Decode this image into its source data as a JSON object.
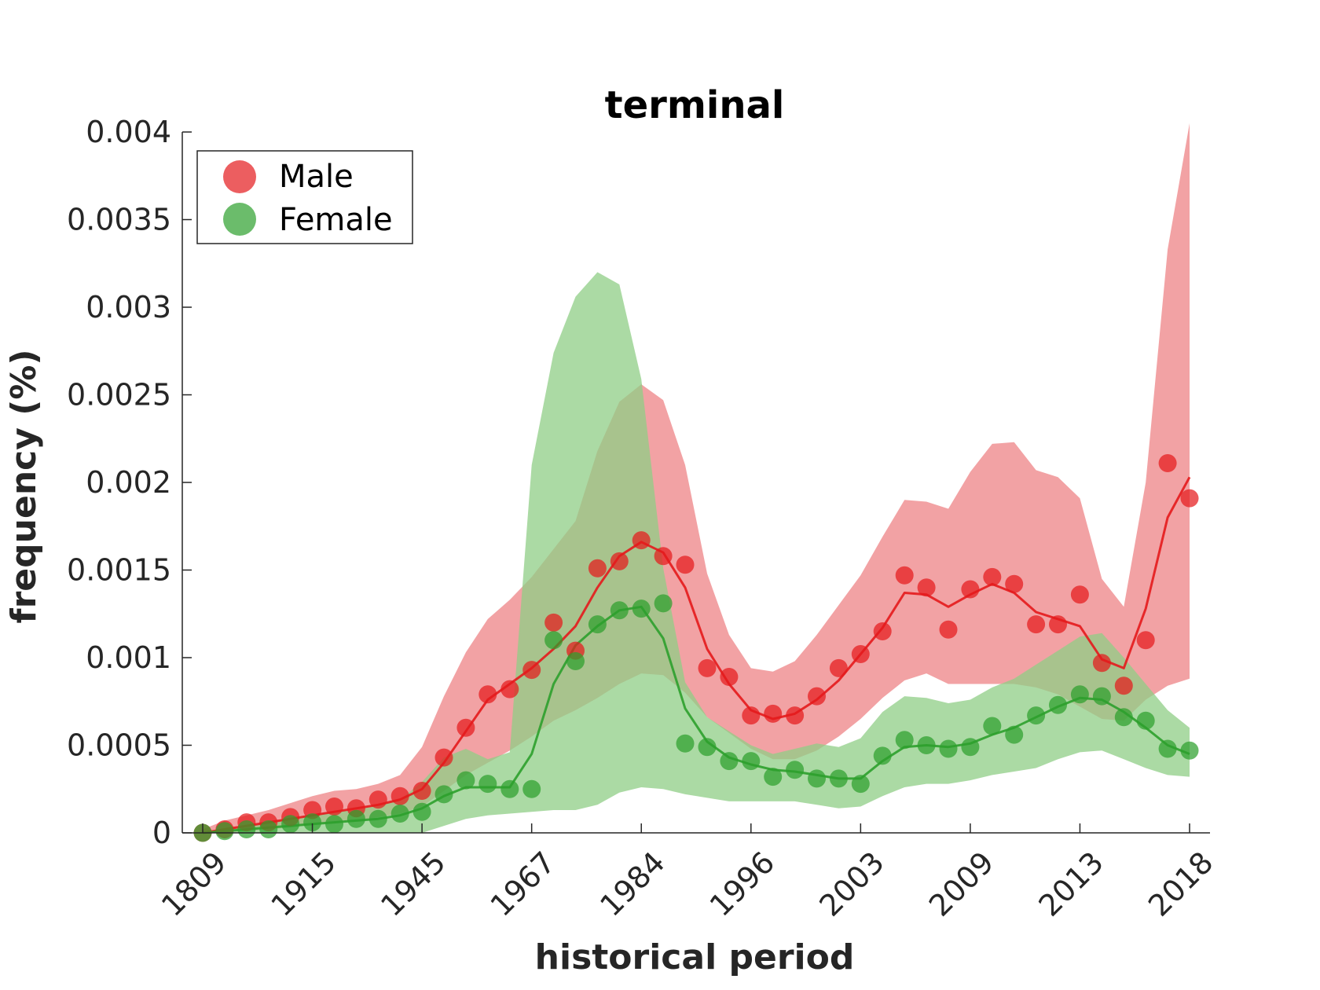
{
  "colors": {
    "male": "#e41a1c",
    "female": "#2ca02c",
    "male_band": "#ee8385",
    "female_band": "#8fce86",
    "axis": "#262626"
  },
  "chart_data": {
    "type": "scatter",
    "title": "terminal",
    "xlabel": "historical period",
    "ylabel": "frequency (%)",
    "x_tick_labels": [
      "1809",
      "1915",
      "1945",
      "1967",
      "1984",
      "1996",
      "2003",
      "2009",
      "2013",
      "2018"
    ],
    "y_tick_labels": [
      "0",
      "0.0005",
      "0.001",
      "0.0015",
      "0.002",
      "0.0025",
      "0.003",
      "0.0035",
      "0.004"
    ],
    "ylim": [
      0,
      0.004
    ],
    "legend": {
      "position": "top-left",
      "entries": [
        "Male",
        "Female"
      ]
    },
    "series": [
      {
        "name": "Male",
        "color_key": "male",
        "points": [
          0.0,
          2e-05,
          6e-05,
          6e-05,
          9e-05,
          0.00013,
          0.00015,
          0.00014,
          0.00019,
          0.00021,
          0.00024,
          0.00043,
          0.0006,
          0.00079,
          0.00082,
          0.00093,
          0.0012,
          0.00104,
          0.00151,
          0.00155,
          0.00167,
          0.00158,
          0.00153,
          0.00094,
          0.00089,
          0.00067,
          0.00068,
          0.00067,
          0.00078,
          0.00094,
          0.00102,
          0.00115,
          0.00147,
          0.0014,
          0.00116,
          0.00139,
          0.00146,
          0.00142,
          0.00119,
          0.00119,
          0.00136,
          0.00097,
          0.00084,
          0.0011,
          0.00211,
          0.00191
        ],
        "trend": [
          0.0,
          2e-05,
          4e-05,
          6e-05,
          8e-05,
          0.0001,
          0.00012,
          0.00014,
          0.00016,
          0.00019,
          0.00025,
          0.0004,
          0.00058,
          0.00076,
          0.00085,
          0.00094,
          0.00105,
          0.00118,
          0.0014,
          0.00158,
          0.00166,
          0.0016,
          0.0014,
          0.00105,
          0.00085,
          0.0007,
          0.00065,
          0.00068,
          0.00076,
          0.00087,
          0.00102,
          0.00117,
          0.00137,
          0.00136,
          0.00129,
          0.00136,
          0.00142,
          0.00137,
          0.00126,
          0.00122,
          0.00118,
          0.00099,
          0.00094,
          0.00128,
          0.0018,
          0.00203
        ],
        "band_upper": [
          2e-05,
          7e-05,
          0.0001,
          0.00013,
          0.00017,
          0.00021,
          0.00024,
          0.00025,
          0.00028,
          0.00033,
          0.00049,
          0.00078,
          0.00103,
          0.00122,
          0.00133,
          0.00146,
          0.00162,
          0.00178,
          0.00218,
          0.00246,
          0.00256,
          0.00247,
          0.0021,
          0.00148,
          0.00113,
          0.00094,
          0.00092,
          0.00098,
          0.00113,
          0.0013,
          0.00147,
          0.00169,
          0.0019,
          0.00189,
          0.00185,
          0.00206,
          0.00222,
          0.00223,
          0.00207,
          0.00203,
          0.00191,
          0.00145,
          0.00129,
          0.002,
          0.00333,
          0.00405
        ],
        "band_lower": [
          0.0,
          0.0,
          1e-05,
          2e-05,
          3e-05,
          5e-05,
          6e-05,
          7e-05,
          9e-05,
          0.00011,
          0.00015,
          0.00024,
          0.00033,
          0.0004,
          0.00047,
          0.00055,
          0.00064,
          0.0007,
          0.00077,
          0.00085,
          0.00091,
          0.0009,
          0.0008,
          0.00066,
          0.00057,
          0.00048,
          0.00042,
          0.00042,
          0.00047,
          0.00055,
          0.00065,
          0.00077,
          0.00087,
          0.00091,
          0.00085,
          0.00085,
          0.00085,
          0.00085,
          0.00083,
          0.00079,
          0.00072,
          0.00065,
          0.00064,
          0.00076,
          0.00084,
          0.00088
        ]
      },
      {
        "name": "Female",
        "color_key": "female",
        "points": [
          0.0,
          1e-05,
          2e-05,
          2e-05,
          5e-05,
          6e-05,
          5e-05,
          8e-05,
          8e-05,
          0.00011,
          0.00012,
          0.00022,
          0.0003,
          0.00028,
          0.00025,
          0.00025,
          0.0011,
          0.00098,
          0.00119,
          0.00127,
          0.00128,
          0.00131,
          0.00051,
          0.00049,
          0.00041,
          0.00041,
          0.00032,
          0.00036,
          0.00031,
          0.00031,
          0.00028,
          0.00044,
          0.00053,
          0.0005,
          0.00048,
          0.00049,
          0.00061,
          0.00056,
          0.00067,
          0.00073,
          0.00079,
          0.00078,
          0.00066,
          0.00064,
          0.00048,
          0.00047
        ],
        "trend": [
          0.0,
          1e-05,
          2e-05,
          3e-05,
          4e-05,
          5e-05,
          6e-05,
          7e-05,
          8e-05,
          0.0001,
          0.00014,
          0.00021,
          0.00026,
          0.00026,
          0.00026,
          0.00045,
          0.00085,
          0.00107,
          0.00118,
          0.00127,
          0.00129,
          0.00111,
          0.00071,
          0.00052,
          0.00043,
          0.00039,
          0.00036,
          0.00035,
          0.00033,
          0.00031,
          0.00031,
          0.00041,
          0.00049,
          0.0005,
          0.00049,
          0.00051,
          0.00056,
          0.0006,
          0.00066,
          0.00072,
          0.00077,
          0.00076,
          0.00069,
          0.0006,
          0.0005,
          0.00045
        ],
        "band_upper": [
          0.0,
          2e-05,
          4e-05,
          6e-05,
          8e-05,
          0.0001,
          0.00012,
          0.00013,
          0.00016,
          0.00019,
          0.00029,
          0.00043,
          0.00048,
          0.00042,
          0.00046,
          0.0021,
          0.00274,
          0.00306,
          0.0032,
          0.00313,
          0.00259,
          0.00151,
          0.00086,
          0.00066,
          0.00058,
          0.0005,
          0.00045,
          0.00048,
          0.00051,
          0.00049,
          0.00054,
          0.00069,
          0.00078,
          0.00077,
          0.00074,
          0.00076,
          0.00083,
          0.00088,
          0.00096,
          0.00104,
          0.00112,
          0.00114,
          0.001,
          0.00085,
          0.0007,
          0.0006
        ],
        "band_lower": [
          0.0,
          0.0,
          0.0,
          0.0,
          0.0,
          0.0,
          0.0,
          0.0,
          0.0,
          0.0,
          0.0,
          4e-05,
          8e-05,
          0.0001,
          0.00011,
          0.00012,
          0.00013,
          0.00013,
          0.00016,
          0.00023,
          0.00026,
          0.00025,
          0.00022,
          0.0002,
          0.00018,
          0.00018,
          0.00018,
          0.00018,
          0.00016,
          0.00014,
          0.00015,
          0.00021,
          0.00026,
          0.00028,
          0.00028,
          0.0003,
          0.00033,
          0.00035,
          0.00037,
          0.00042,
          0.00046,
          0.00047,
          0.00042,
          0.00037,
          0.00033,
          0.00032
        ]
      }
    ]
  }
}
